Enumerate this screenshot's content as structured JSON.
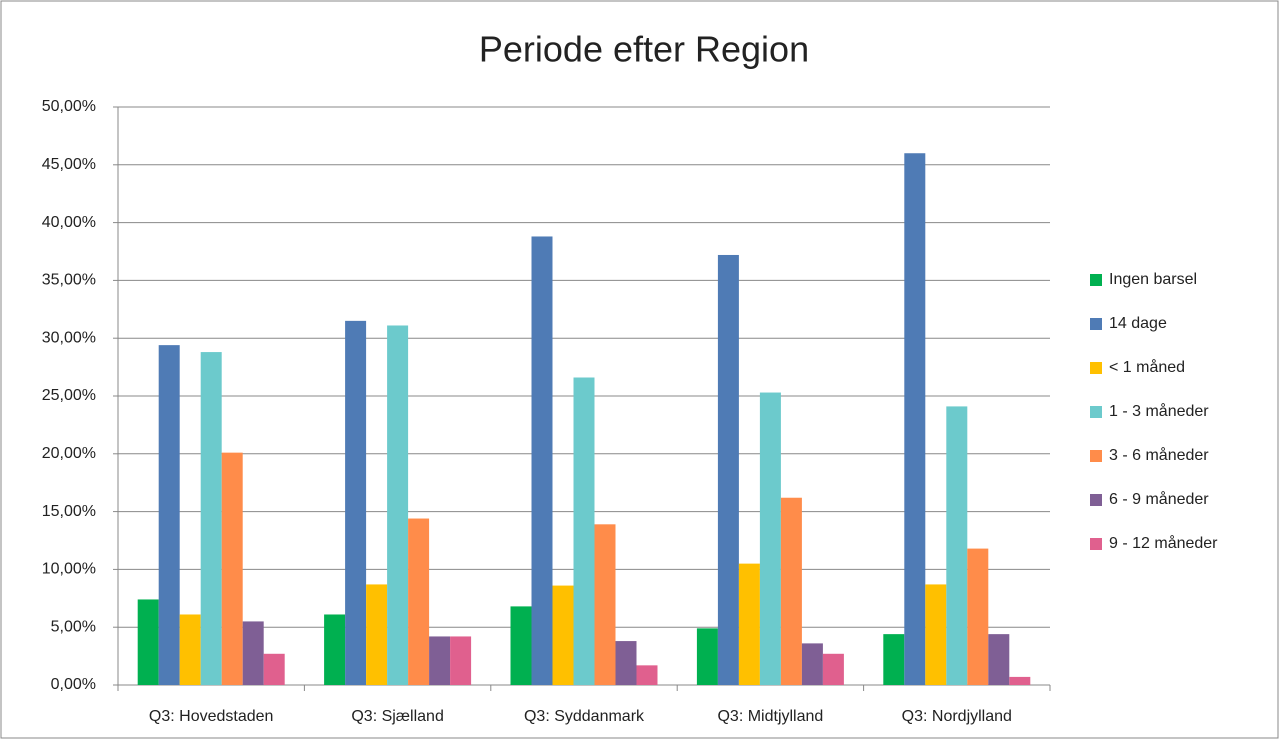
{
  "chart_data": {
    "type": "bar",
    "title": "Periode efter Region",
    "categories": [
      "Q3: Hovedstaden",
      "Q3: Sjælland",
      "Q3: Syddanmark",
      "Q3: Midtjylland",
      "Q3: Nordjylland"
    ],
    "series": [
      {
        "name": "Ingen barsel",
        "color": "#00b050",
        "values": [
          7.4,
          6.1,
          6.8,
          4.9,
          4.4
        ]
      },
      {
        "name": "14 dage",
        "color": "#4f7bb5",
        "values": [
          29.4,
          31.5,
          38.8,
          37.2,
          46.0
        ]
      },
      {
        "name": "< 1 måned",
        "color": "#ffc000",
        "values": [
          6.1,
          8.7,
          8.6,
          10.5,
          8.7
        ]
      },
      {
        "name": "1 - 3 måneder",
        "color": "#6ccacc",
        "values": [
          28.8,
          31.1,
          26.6,
          25.3,
          24.1
        ]
      },
      {
        "name": "3 - 6 måneder",
        "color": "#ff8c4a",
        "values": [
          20.1,
          14.4,
          13.9,
          16.2,
          11.8
        ]
      },
      {
        "name": "6 - 9 måneder",
        "color": "#7f5f95",
        "values": [
          5.5,
          4.2,
          3.8,
          3.6,
          4.4
        ]
      },
      {
        "name": "9 - 12 måneder",
        "color": "#e0608e",
        "values": [
          2.7,
          4.2,
          1.7,
          2.7,
          0.7
        ]
      }
    ],
    "ylim": [
      0,
      50
    ],
    "yticks": [
      {
        "value": 0,
        "label": "0,00%"
      },
      {
        "value": 5,
        "label": "5,00%"
      },
      {
        "value": 10,
        "label": "10,00%"
      },
      {
        "value": 15,
        "label": "15,00%"
      },
      {
        "value": 20,
        "label": "20,00%"
      },
      {
        "value": 25,
        "label": "25,00%"
      },
      {
        "value": 30,
        "label": "30,00%"
      },
      {
        "value": 35,
        "label": "35,00%"
      },
      {
        "value": 40,
        "label": "40,00%"
      },
      {
        "value": 45,
        "label": "45,00%"
      },
      {
        "value": 50,
        "label": "50,00%"
      }
    ],
    "grid": true,
    "legend": "right"
  }
}
